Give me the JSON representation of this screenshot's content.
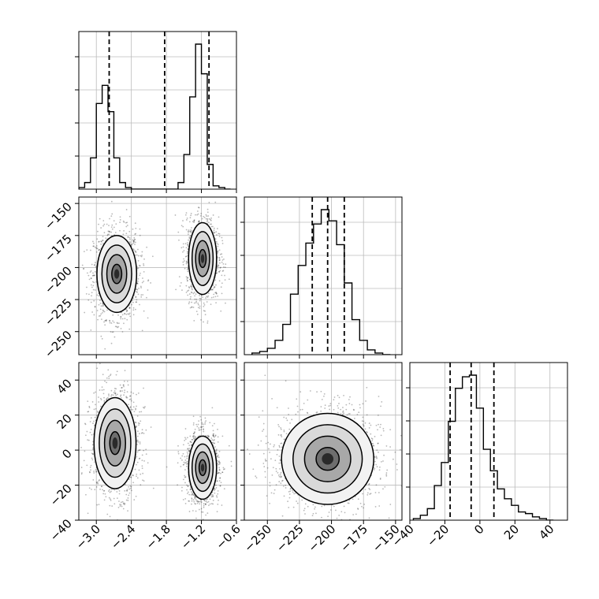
{
  "chart_data": {
    "type": "corner",
    "title": "",
    "grid": true,
    "variables": [
      {
        "label": "",
        "range": [
          -3.3,
          -0.6
        ],
        "ticks": [
          -3.0,
          -2.4,
          -1.8,
          -1.2,
          -0.6
        ],
        "tick_labels": [
          "−3.0",
          "−2.4",
          "−1.8",
          "−1.2",
          "−0.6"
        ]
      },
      {
        "label": "",
        "range": [
          -268,
          -145
        ],
        "ticks": [
          -250,
          -225,
          -200,
          -175,
          -150
        ],
        "tick_labels": [
          "−250",
          "−225",
          "−200",
          "−175",
          "−150"
        ]
      },
      {
        "label": "",
        "range": [
          -40,
          50
        ],
        "ticks": [
          -40,
          -20,
          0,
          20,
          40
        ],
        "tick_labels": [
          "−40",
          "−20",
          "0",
          "20",
          "40"
        ]
      }
    ],
    "quantiles": [
      [
        -2.78,
        -1.83,
        -1.07
      ],
      [
        -215,
        -203,
        -190
      ],
      [
        -17,
        -5,
        8
      ]
    ],
    "hist_1d": [
      {
        "bins": [
          -3.3,
          -3.2,
          -3.1,
          -3.0,
          -2.9,
          -2.8,
          -2.7,
          -2.6,
          -2.5,
          -2.4,
          -2.3,
          -2.2,
          -2.1,
          -2.0,
          -1.9,
          -1.8,
          -1.7,
          -1.6,
          -1.5,
          -1.4,
          -1.3,
          -1.2,
          -1.1,
          -1.0,
          -0.9,
          -0.8,
          -0.7
        ],
        "counts": [
          0.01,
          0.04,
          0.19,
          0.52,
          0.63,
          0.47,
          0.19,
          0.04,
          0.01,
          0,
          0,
          0,
          0,
          0,
          0,
          0,
          0,
          0.04,
          0.21,
          0.56,
          0.88,
          0.7,
          0.15,
          0.02,
          0.01,
          0
        ]
      },
      {
        "bins": [
          -262,
          -256,
          -250,
          -244,
          -238,
          -232,
          -226,
          -220,
          -214,
          -208,
          -202,
          -196,
          -190,
          -184,
          -178,
          -172,
          -166,
          -160,
          -154
        ],
        "counts": [
          0.01,
          0.02,
          0.04,
          0.09,
          0.19,
          0.38,
          0.56,
          0.7,
          0.82,
          0.91,
          0.84,
          0.69,
          0.45,
          0.22,
          0.09,
          0.03,
          0.01,
          0.0
        ]
      },
      {
        "bins": [
          -38,
          -34,
          -30,
          -26,
          -22,
          -18,
          -14,
          -10,
          -6,
          -2,
          2,
          6,
          10,
          14,
          18,
          22,
          26,
          30,
          34,
          38,
          42
        ],
        "counts": [
          0.01,
          0.03,
          0.07,
          0.21,
          0.35,
          0.6,
          0.8,
          0.87,
          0.88,
          0.68,
          0.43,
          0.3,
          0.19,
          0.13,
          0.09,
          0.05,
          0.04,
          0.02,
          0.01,
          0.0
        ]
      }
    ],
    "hist_2d": [
      {
        "xvar": 0,
        "yvar": 1,
        "modes": [
          {
            "center": [
              -2.65,
              -205
            ],
            "sigma": [
              0.17,
              15
            ]
          },
          {
            "center": [
              -1.18,
              -193
            ],
            "sigma": [
              0.12,
              14
            ]
          }
        ]
      },
      {
        "xvar": 0,
        "yvar": 2,
        "modes": [
          {
            "center": [
              -2.68,
              4
            ],
            "sigma": [
              0.18,
              13
            ]
          },
          {
            "center": [
              -1.18,
              -10
            ],
            "sigma": [
              0.12,
              9
            ]
          }
        ]
      },
      {
        "xvar": 1,
        "yvar": 2,
        "modes": [
          {
            "center": [
              -203,
              -5
            ],
            "sigma": [
              18,
              13
            ]
          }
        ]
      }
    ]
  }
}
